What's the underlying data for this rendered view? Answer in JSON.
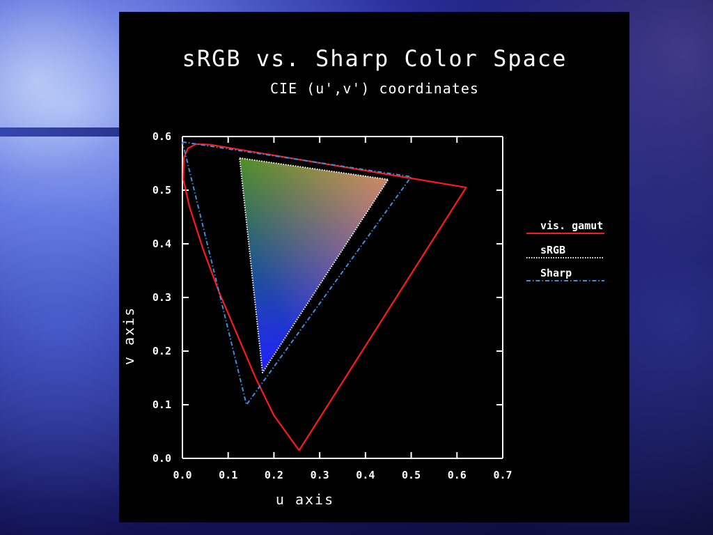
{
  "chart_data": {
    "type": "line",
    "title": "sRGB vs. Sharp Color Space",
    "subtitle": "CIE (u',v') coordinates",
    "xlabel": "u axis",
    "ylabel": "v axis",
    "xlim": [
      0.0,
      0.7
    ],
    "ylim": [
      0.0,
      0.6
    ],
    "x_ticks": [
      "0.0",
      "0.1",
      "0.2",
      "0.3",
      "0.4",
      "0.5",
      "0.6",
      "0.7"
    ],
    "y_ticks": [
      "0.0",
      "0.1",
      "0.2",
      "0.3",
      "0.4",
      "0.5",
      "0.6"
    ],
    "legend_position": "right",
    "series": [
      {
        "name": "vis. gamut",
        "color": "#ff1a1a",
        "style": "solid",
        "points": [
          [
            0.255,
            0.015
          ],
          [
            0.2,
            0.08
          ],
          [
            0.16,
            0.15
          ],
          [
            0.12,
            0.23
          ],
          [
            0.08,
            0.31
          ],
          [
            0.045,
            0.39
          ],
          [
            0.015,
            0.47
          ],
          [
            0.002,
            0.52
          ],
          [
            0.003,
            0.56
          ],
          [
            0.012,
            0.578
          ],
          [
            0.03,
            0.586
          ],
          [
            0.06,
            0.585
          ],
          [
            0.62,
            0.505
          ],
          [
            0.255,
            0.015
          ]
        ]
      },
      {
        "name": "sRGB",
        "color": "#ffffff",
        "style": "dotted",
        "points": [
          [
            0.125,
            0.56
          ],
          [
            0.45,
            0.52
          ],
          [
            0.175,
            0.16
          ],
          [
            0.125,
            0.56
          ]
        ]
      },
      {
        "name": "Sharp",
        "color": "#3a8fe0",
        "style": "dashdot",
        "points": [
          [
            0.0,
            0.59
          ],
          [
            0.5,
            0.525
          ],
          [
            0.14,
            0.1
          ],
          [
            0.0,
            0.59
          ]
        ]
      }
    ]
  },
  "colors": {
    "panel_bg": "#000000",
    "axis": "#ffffff",
    "srgb_red": "#c8202c",
    "srgb_green": "#1e8a1e",
    "srgb_blue": "#2020ff"
  }
}
